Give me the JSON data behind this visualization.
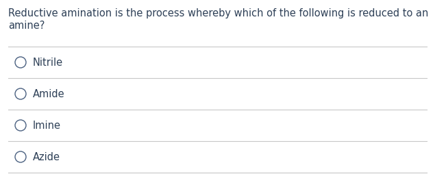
{
  "question_line1": "Reductive amination is the process whereby which of the following is reduced to an",
  "question_line2": "amine?",
  "options": [
    "Nitrile",
    "Amide",
    "Imine",
    "Azide"
  ],
  "background_color": "#ffffff",
  "text_color": "#2e4057",
  "line_color": "#c8c8c8",
  "question_fontsize": 10.5,
  "option_fontsize": 10.5,
  "fig_width": 6.35,
  "fig_height": 2.54
}
